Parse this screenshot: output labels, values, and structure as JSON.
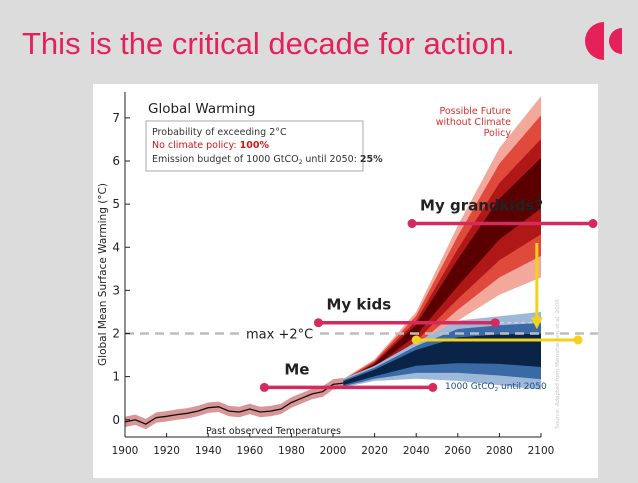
{
  "slide": {
    "title": "This is the critical decade for action.",
    "accent_color": "#e5215a",
    "logo_icon": "double-quote-logo-icon"
  },
  "chart_data": {
    "type": "area",
    "title": "Global Warming",
    "xlabel": "",
    "ylabel": "Global Mean Surface Warming (°C)",
    "xlim": [
      1900,
      2100
    ],
    "ylim": [
      -0.4,
      7.6
    ],
    "x_ticks": [
      1900,
      1920,
      1940,
      1960,
      1980,
      2000,
      2020,
      2040,
      2060,
      2080,
      2100
    ],
    "y_ticks": [
      0,
      1,
      2,
      3,
      4,
      5,
      6,
      7
    ],
    "grid": false,
    "info_box": {
      "line1": "Probability of exceeding 2°C",
      "line2_prefix": "No climate policy: ",
      "line2_value": "100%",
      "line3_prefix": "Emission budget of 1000 GtCO",
      "line3_sub": "2",
      "line3_suffix": " until 2050: ",
      "line3_value": "25%"
    },
    "series": [
      {
        "name": "Past observed Temperatures",
        "x": [
          1900,
          1905,
          1910,
          1915,
          1920,
          1925,
          1930,
          1935,
          1940,
          1945,
          1950,
          1955,
          1960,
          1965,
          1970,
          1975,
          1980,
          1985,
          1990,
          1995,
          2000,
          2005
        ],
        "y": [
          -0.05,
          0.0,
          -0.1,
          0.05,
          0.08,
          0.12,
          0.15,
          0.2,
          0.28,
          0.3,
          0.2,
          0.18,
          0.25,
          0.18,
          0.2,
          0.25,
          0.4,
          0.5,
          0.6,
          0.65,
          0.82,
          0.85
        ]
      },
      {
        "name": "Possible Future without Climate Policy",
        "x": [
          2005,
          2020,
          2040,
          2060,
          2080,
          2100
        ],
        "y_low": [
          0.75,
          1.1,
          1.6,
          2.3,
          2.9,
          3.3
        ],
        "y_high": [
          0.95,
          1.4,
          2.5,
          4.5,
          6.3,
          7.5
        ],
        "y_median": [
          0.85,
          1.25,
          2.05,
          3.3,
          4.5,
          5.3
        ]
      },
      {
        "name": "1000 GtCO2 until 2050",
        "x": [
          2005,
          2020,
          2040,
          2060,
          2080,
          2100
        ],
        "y_low": [
          0.75,
          0.9,
          0.95,
          0.9,
          0.8,
          0.7
        ],
        "y_high": [
          0.95,
          1.25,
          1.8,
          2.3,
          2.4,
          2.5
        ],
        "y_median": [
          0.85,
          1.1,
          1.5,
          1.65,
          1.7,
          1.65
        ]
      }
    ],
    "threshold": {
      "y": 2.0,
      "label": "max +2°C"
    },
    "series_labels": {
      "future_line1": "Possible Future",
      "future_line2": "without Climate",
      "future_line3": "Policy",
      "budget_prefix": "1000 GtCO",
      "budget_sub": "2",
      "budget_suffix": " until 2050",
      "observed": "Past observed Temperatures"
    },
    "annotations": [
      {
        "label": "Me",
        "x_start": 1967,
        "x_end": 2048,
        "y": 0.75
      },
      {
        "label": "My kids",
        "x_start": 1993,
        "x_end": 2078,
        "y": 2.25
      },
      {
        "label": "My grandkids?",
        "x_start": 2038,
        "x_end": 2128,
        "y": 4.55
      }
    ],
    "overlays": {
      "arrow_x": 2098,
      "arrow_from": 4.1,
      "arrow_to": 2.1,
      "yellow_line_x_start": 2040,
      "yellow_line_x_end": 2130,
      "yellow_line_y": 1.85,
      "upper_dashed_y": 2.25
    },
    "colors": {
      "future_outer": "#f2a89a",
      "future_mid": "#e04a3c",
      "future_inner": "#b01818",
      "future_core": "#5a0000",
      "budget_outer": "#9db8d8",
      "budget_mid": "#3a6aa5",
      "budget_core": "#0a2448",
      "observed": "#111111",
      "annotation": "#d62a5e",
      "arrow": "#f2d21c",
      "threshold": "#bdbdbd"
    },
    "source_note": "Source: Adapted from Meinshausen et al. 2009"
  }
}
